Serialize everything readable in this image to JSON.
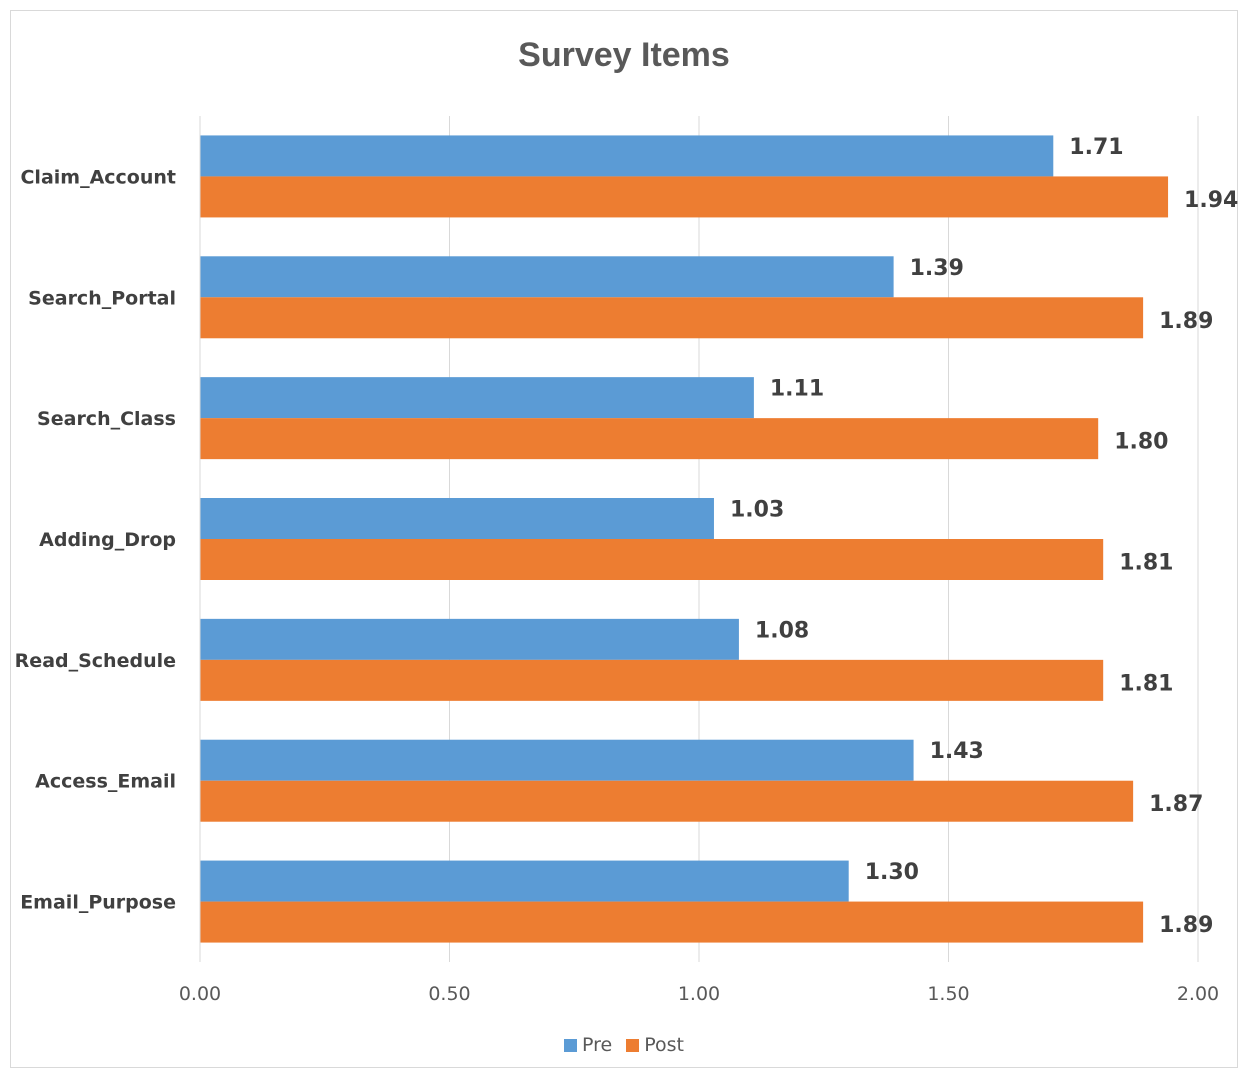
{
  "chart_data": {
    "type": "bar",
    "orientation": "horizontal",
    "title": "Survey Items",
    "categories": [
      "Claim_Account",
      "Search_Portal",
      "Search_Class",
      "Adding_Drop",
      "Read_Schedule",
      "Access_Email",
      "Email_Purpose"
    ],
    "series": [
      {
        "name": "Pre",
        "color": "#5b9bd5",
        "values": [
          1.71,
          1.39,
          1.11,
          1.03,
          1.08,
          1.43,
          1.3
        ],
        "labels": [
          "1.71",
          "1.39",
          "1.11",
          "1.03",
          "1.08",
          "1.43",
          "1.30"
        ]
      },
      {
        "name": "Post",
        "color": "#ed7d31",
        "values": [
          1.94,
          1.89,
          1.8,
          1.81,
          1.81,
          1.87,
          1.89
        ],
        "labels": [
          "1.94",
          "1.89",
          "1.80",
          "1.81",
          "1.81",
          "1.87",
          "1.89"
        ]
      }
    ],
    "xlim": [
      0,
      2
    ],
    "xticks": [
      "0.00",
      "0.50",
      "1.00",
      "1.50",
      "2.00"
    ],
    "xtick_values": [
      0,
      0.5,
      1,
      1.5,
      2
    ],
    "grid": "vertical",
    "legend": "bottom"
  }
}
